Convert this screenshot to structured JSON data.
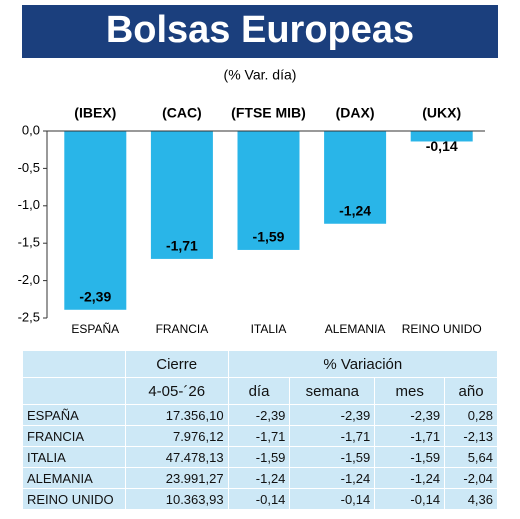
{
  "chart_data": {
    "type": "bar",
    "title": "Bolsas Europeas",
    "subtitle": "(% Var. día)",
    "categories": [
      "ESPAÑA",
      "FRANCIA",
      "ITALIA",
      "ALEMANIA",
      "REINO UNIDO"
    ],
    "index_labels": [
      "(IBEX)",
      "(CAC)",
      "(FTSE MIB)",
      "(DAX)",
      "(UKX)"
    ],
    "values": [
      -2.39,
      -1.71,
      -1.59,
      -1.24,
      -0.14
    ],
    "value_labels": [
      "-2,39",
      "-1,71",
      "-1,59",
      "-1,24",
      "-0,14"
    ],
    "color": "#29b5e8",
    "ylim": [
      -2.5,
      0
    ],
    "yticks": [
      {
        "value": 0,
        "label": "0,0"
      },
      {
        "value": -0.5,
        "label": "-0,5"
      },
      {
        "value": -1,
        "label": "-1,0"
      },
      {
        "value": -1.5,
        "label": "-1,5"
      },
      {
        "value": -2,
        "label": "-2,0"
      },
      {
        "value": -2.5,
        "label": "-2,5"
      }
    ]
  },
  "table": {
    "header": [
      "Cierre",
      "% Variación"
    ],
    "subheader": [
      "4-05-´26",
      "día",
      "semana",
      "mes",
      "año"
    ],
    "rows": [
      [
        "ESPAÑA",
        "17.356,10",
        "-2,39",
        "-2,39",
        "-2,39",
        "0,28"
      ],
      [
        "FRANCIA",
        "7.976,12",
        "-1,71",
        "-1,71",
        "-1,71",
        "-2,13"
      ],
      [
        "ITALIA",
        "47.478,13",
        "-1,59",
        "-1,59",
        "-1,59",
        "5,64"
      ],
      [
        "ALEMANIA",
        "23.991,27",
        "-1,24",
        "-1,24",
        "-1,24",
        "-2,04"
      ],
      [
        "REINO UNIDO",
        "10.363,93",
        "-0,14",
        "-0,14",
        "-0,14",
        "4,36"
      ]
    ]
  }
}
